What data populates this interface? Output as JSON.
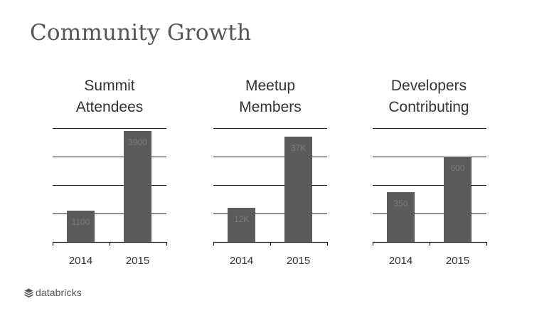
{
  "slide": {
    "title": "Community Growth"
  },
  "brand": {
    "name": "databricks",
    "icon": "stacked-bricks-icon",
    "color": "#555555"
  },
  "colors": {
    "bar": "#5b5b5b",
    "bar_label": "#7a7a7a",
    "grid": "#222222"
  },
  "chart_data": [
    {
      "type": "bar",
      "title": "Summit Attendees",
      "title_lines": [
        "Summit",
        "Attendees"
      ],
      "categories": [
        "2014",
        "2015"
      ],
      "values": [
        1100,
        3900
      ],
      "value_labels": [
        "1100",
        "3900"
      ],
      "ylim": [
        0,
        4000
      ],
      "yticks": [
        0,
        1000,
        2000,
        3000,
        4000
      ],
      "grid": true,
      "xlabel": "",
      "ylabel": ""
    },
    {
      "type": "bar",
      "title": "Meetup Members",
      "title_lines": [
        "Meetup",
        "Members"
      ],
      "categories": [
        "2014",
        "2015"
      ],
      "values": [
        12,
        37
      ],
      "value_labels": [
        "12K",
        "37K"
      ],
      "ylim": [
        0,
        40
      ],
      "yticks": [
        0,
        10,
        20,
        30,
        40
      ],
      "grid": true,
      "xlabel": "",
      "ylabel": ""
    },
    {
      "type": "bar",
      "title": "Developers Contributing",
      "title_lines": [
        "Developers",
        "Contributing"
      ],
      "categories": [
        "2014",
        "2015"
      ],
      "values": [
        350,
        600
      ],
      "value_labels": [
        "350",
        "600"
      ],
      "ylim": [
        0,
        800
      ],
      "yticks": [
        0,
        200,
        400,
        600,
        800
      ],
      "grid": true,
      "xlabel": "",
      "ylabel": ""
    }
  ]
}
